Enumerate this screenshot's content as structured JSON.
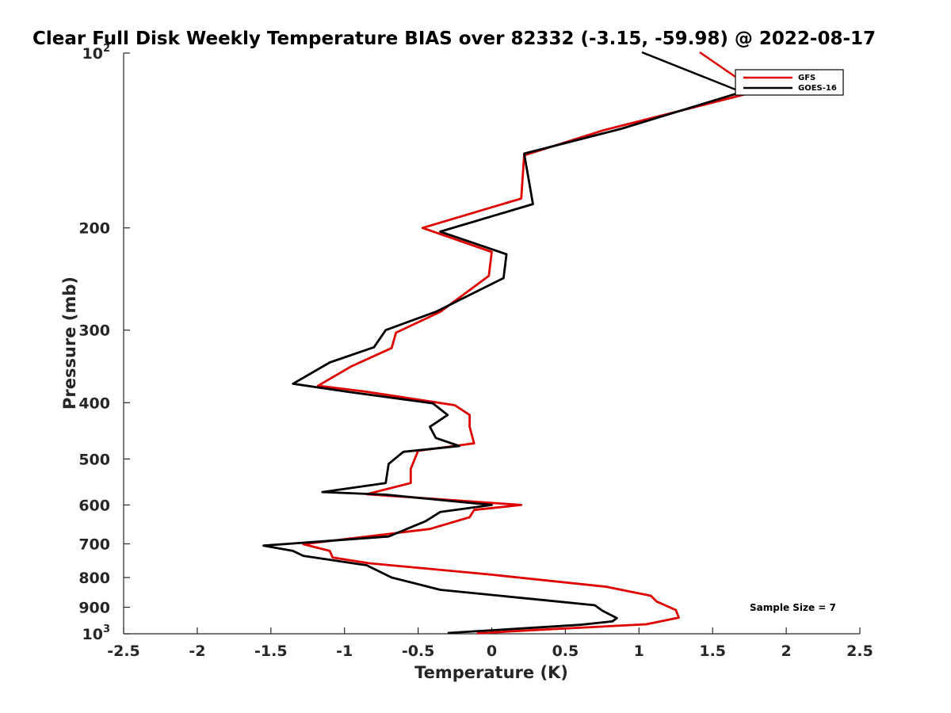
{
  "chart_data": {
    "type": "line",
    "title": "Clear Full Disk Weekly Temperature BIAS over 82332 (-3.15, -59.98) @ 2022-08-17",
    "xlabel": "Temperature (K)",
    "ylabel": "Pressure (mb)",
    "xlim": [
      -2.5,
      2.5
    ],
    "ylim": [
      100,
      1000
    ],
    "y_scale": "log",
    "y_reversed": true,
    "grid": false,
    "legend_position": "top-right",
    "x_ticks": [
      "-2.5",
      "-2",
      "-1.5",
      "-1",
      "-0.5",
      "0",
      "0.5",
      "1",
      "1.5",
      "2",
      "2.5"
    ],
    "y_ticks": [
      {
        "base": "10",
        "exp": "2",
        "value": 100
      },
      {
        "base": "200",
        "exp": "",
        "value": 200
      },
      {
        "base": "300",
        "exp": "",
        "value": 300
      },
      {
        "base": "400",
        "exp": "",
        "value": 400
      },
      {
        "base": "500",
        "exp": "",
        "value": 500
      },
      {
        "base": "600",
        "exp": "",
        "value": 600
      },
      {
        "base": "700",
        "exp": "",
        "value": 700
      },
      {
        "base": "800",
        "exp": "",
        "value": 800
      },
      {
        "base": "900",
        "exp": "",
        "value": 900
      },
      {
        "base": "10",
        "exp": "3",
        "value": 1000
      }
    ],
    "annotation": "Sample Size = 7",
    "series": [
      {
        "name": "GFS",
        "color": "#e00000",
        "points": [
          [
            1.88,
            115
          ],
          [
            0.75,
            136
          ],
          [
            0.22,
            150
          ],
          [
            0.2,
            178
          ],
          [
            -0.47,
            200
          ],
          [
            0.0,
            220
          ],
          [
            -0.02,
            242
          ],
          [
            -0.35,
            279
          ],
          [
            -0.65,
            303
          ],
          [
            -0.68,
            322
          ],
          [
            -0.95,
            346
          ],
          [
            -1.18,
            374
          ],
          [
            -0.85,
            383
          ],
          [
            -0.25,
            404
          ],
          [
            -0.15,
            420
          ],
          [
            -0.15,
            440
          ],
          [
            -0.12,
            470
          ],
          [
            -0.5,
            484
          ],
          [
            -0.55,
            520
          ],
          [
            -0.55,
            550
          ],
          [
            -0.85,
            575
          ],
          [
            0.2,
            600
          ],
          [
            -0.12,
            612
          ],
          [
            -0.15,
            630
          ],
          [
            -0.42,
            660
          ],
          [
            -1.28,
            701
          ],
          [
            -1.1,
            720
          ],
          [
            -1.08,
            739
          ],
          [
            -0.83,
            756
          ],
          [
            0.0,
            791
          ],
          [
            0.78,
            830
          ],
          [
            1.08,
            860
          ],
          [
            1.12,
            880
          ],
          [
            1.25,
            910
          ],
          [
            1.27,
            938
          ],
          [
            1.05,
            963
          ],
          [
            0.3,
            985
          ],
          [
            -0.1,
            998
          ]
        ]
      },
      {
        "name": "GOES-16",
        "color": "#000000",
        "points": [
          [
            1.83,
            114
          ],
          [
            0.88,
            135
          ],
          [
            0.22,
            149
          ],
          [
            0.28,
            182
          ],
          [
            -0.35,
            203
          ],
          [
            0.1,
            222
          ],
          [
            0.08,
            244
          ],
          [
            -0.38,
            279
          ],
          [
            -0.72,
            300
          ],
          [
            -0.8,
            321
          ],
          [
            -1.1,
            341
          ],
          [
            -1.35,
            371
          ],
          [
            -0.98,
            383
          ],
          [
            -0.4,
            401
          ],
          [
            -0.3,
            420
          ],
          [
            -0.42,
            440
          ],
          [
            -0.38,
            460
          ],
          [
            -0.22,
            475
          ],
          [
            -0.6,
            486
          ],
          [
            -0.7,
            510
          ],
          [
            -0.72,
            550
          ],
          [
            -1.15,
            570
          ],
          [
            -0.72,
            576
          ],
          [
            0.0,
            600
          ],
          [
            -0.35,
            617
          ],
          [
            -0.45,
            640
          ],
          [
            -0.7,
            680
          ],
          [
            -1.55,
            705
          ],
          [
            -1.35,
            720
          ],
          [
            -1.28,
            734
          ],
          [
            -0.85,
            762
          ],
          [
            -0.68,
            800
          ],
          [
            -0.35,
            840
          ],
          [
            0.45,
            880
          ],
          [
            0.7,
            893
          ],
          [
            0.75,
            912
          ],
          [
            0.85,
            940
          ],
          [
            0.82,
            952
          ],
          [
            0.6,
            965
          ],
          [
            -0.3,
            997
          ]
        ]
      }
    ]
  }
}
